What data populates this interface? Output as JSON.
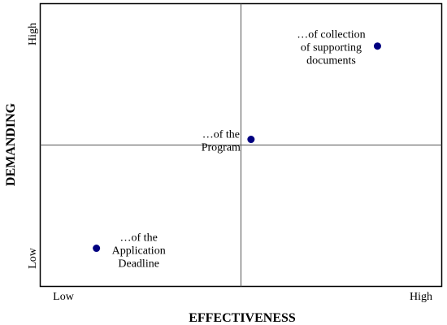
{
  "chart_data": {
    "type": "scatter",
    "title": "",
    "xlabel": "EFFECTIVENESS",
    "ylabel": "DEMANDING",
    "xlim": [
      0,
      10
    ],
    "ylim": [
      0,
      10
    ],
    "x_ticks": [
      "Low",
      "High"
    ],
    "y_ticks": [
      "Low",
      "High"
    ],
    "quadrant_lines": {
      "x": 5,
      "y": 5
    },
    "grid": false,
    "legend": "none",
    "marker_color": "#000080",
    "points": [
      {
        "label_lines": [
          "…of collection",
          "of supporting",
          "documents"
        ],
        "x": 8.4,
        "y": 8.5,
        "label_side": "left-top"
      },
      {
        "label_lines": [
          "…of the",
          "Program"
        ],
        "x": 5.25,
        "y": 5.2,
        "label_side": "left"
      },
      {
        "label_lines": [
          "…of the",
          "Application",
          "Deadline"
        ],
        "x": 1.4,
        "y": 1.35,
        "label_side": "right"
      }
    ]
  }
}
